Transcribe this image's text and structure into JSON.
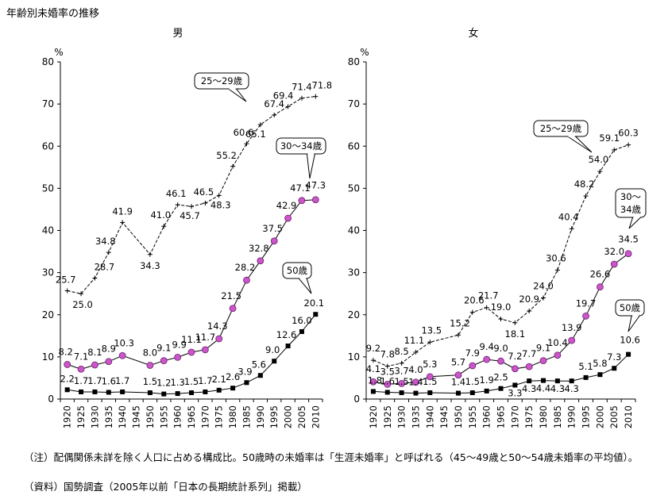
{
  "title": "年齢別未婚率の推移",
  "notes": {
    "note1": "（注）配偶関係未詳を除く人口に占める構成比。50歳時の未婚率は「生涯未婚率」と呼ばれる（45～49歳と50～54歳未婚率の平均値）。",
    "note2": "（資料）国勢調査（2005年以前「日本の長期統計系列」掲載）"
  },
  "chart_data": [
    {
      "type": "line",
      "title": "男",
      "ylabel": "%",
      "ylim": [
        0,
        80
      ],
      "yticks": [
        0,
        10,
        20,
        30,
        40,
        50,
        60,
        70,
        80
      ],
      "x": [
        "1920",
        "1925",
        "1930",
        "1935",
        "1940",
        "1945",
        "1950",
        "1955",
        "1960",
        "1965",
        "1970",
        "1975",
        "1980",
        "1985",
        "1990",
        "1995",
        "2000",
        "2005",
        "2010"
      ],
      "series": [
        {
          "name": "25～29歳",
          "marker": "plus",
          "color": "#000000",
          "values": [
            25.7,
            25.0,
            28.7,
            34.8,
            41.9,
            null,
            34.3,
            41.0,
            46.1,
            45.7,
            46.5,
            48.3,
            55.2,
            60.6,
            65.1,
            67.4,
            69.4,
            71.4,
            71.8
          ]
        },
        {
          "name": "30～34歳",
          "marker": "circle",
          "color": "#cc44cc",
          "values": [
            8.2,
            7.1,
            8.1,
            8.9,
            10.3,
            null,
            8.0,
            9.1,
            9.9,
            11.1,
            11.7,
            14.3,
            21.5,
            28.2,
            32.8,
            37.5,
            42.9,
            47.1,
            47.3
          ]
        },
        {
          "name": "50歳",
          "marker": "square",
          "color": "#000000",
          "values": [
            2.2,
            1.7,
            1.7,
            1.6,
            1.7,
            null,
            1.5,
            1.2,
            1.3,
            1.5,
            1.7,
            2.1,
            2.6,
            3.9,
            5.6,
            9.0,
            12.6,
            16.0,
            20.1
          ]
        }
      ],
      "data_labels": [
        [
          [
            "25.7",
            "25.0",
            "28.7",
            "34.8",
            "41.9",
            "",
            "34.3",
            "41.0",
            "46.1",
            "45.7",
            "46.5",
            "48.3",
            "55.2",
            "60.6",
            "65.1",
            "67.4",
            "69.4",
            "71.4",
            "71.8"
          ]
        ],
        [
          [
            "8.2",
            "7.1",
            "8.1",
            "8.9",
            "10.3",
            "",
            "8.0",
            "9.1",
            "9.9",
            "11.1",
            "11.7",
            "14.3",
            "21.5",
            "28.2",
            "32.8",
            "37.5",
            "42.9",
            "47.1",
            "47.3"
          ]
        ],
        [
          [
            "2.2",
            "1.7",
            "1.7",
            "1.6",
            "1.7",
            "",
            "1.5",
            "1.2",
            "1.3",
            "1.5",
            "1.7",
            "2.1",
            "2.6",
            "3.9",
            "5.6",
            "9.0",
            "12.6",
            "16.0",
            "20.1"
          ]
        ]
      ]
    },
    {
      "type": "line",
      "title": "女",
      "ylabel": "%",
      "ylim": [
        0,
        80
      ],
      "yticks": [
        0,
        10,
        20,
        30,
        40,
        50,
        60,
        70,
        80
      ],
      "x": [
        "1920",
        "1925",
        "1930",
        "1935",
        "1940",
        "1945",
        "1950",
        "1955",
        "1960",
        "1965",
        "1970",
        "1975",
        "1980",
        "1985",
        "1990",
        "1995",
        "2000",
        "2005",
        "2010"
      ],
      "series": [
        {
          "name": "25～29歳",
          "marker": "plus",
          "color": "#000000",
          "values": [
            9.2,
            7.8,
            8.5,
            11.1,
            13.5,
            null,
            15.2,
            20.6,
            21.7,
            19.0,
            18.1,
            20.9,
            24.0,
            30.6,
            40.4,
            48.2,
            54.0,
            59.1,
            60.3
          ]
        },
        {
          "name": "30～34歳",
          "marker": "circle",
          "color": "#cc44cc",
          "values": [
            4.1,
            3.5,
            3.7,
            4.0,
            5.3,
            null,
            5.7,
            7.9,
            9.4,
            9.0,
            7.2,
            7.7,
            9.1,
            10.4,
            13.9,
            19.7,
            26.6,
            32.0,
            34.5
          ]
        },
        {
          "name": "50歳",
          "marker": "square",
          "color": "#000000",
          "values": [
            1.8,
            1.6,
            1.5,
            1.4,
            1.5,
            null,
            1.4,
            1.5,
            1.9,
            2.5,
            3.3,
            4.3,
            4.4,
            4.3,
            4.3,
            5.1,
            5.8,
            7.3,
            10.6
          ]
        }
      ]
    }
  ],
  "callouts": {
    "male": [
      "25～29歳",
      "30～34歳",
      "50歳"
    ],
    "female": [
      "25～29歳",
      "30～\n34歳",
      "50歳"
    ]
  }
}
